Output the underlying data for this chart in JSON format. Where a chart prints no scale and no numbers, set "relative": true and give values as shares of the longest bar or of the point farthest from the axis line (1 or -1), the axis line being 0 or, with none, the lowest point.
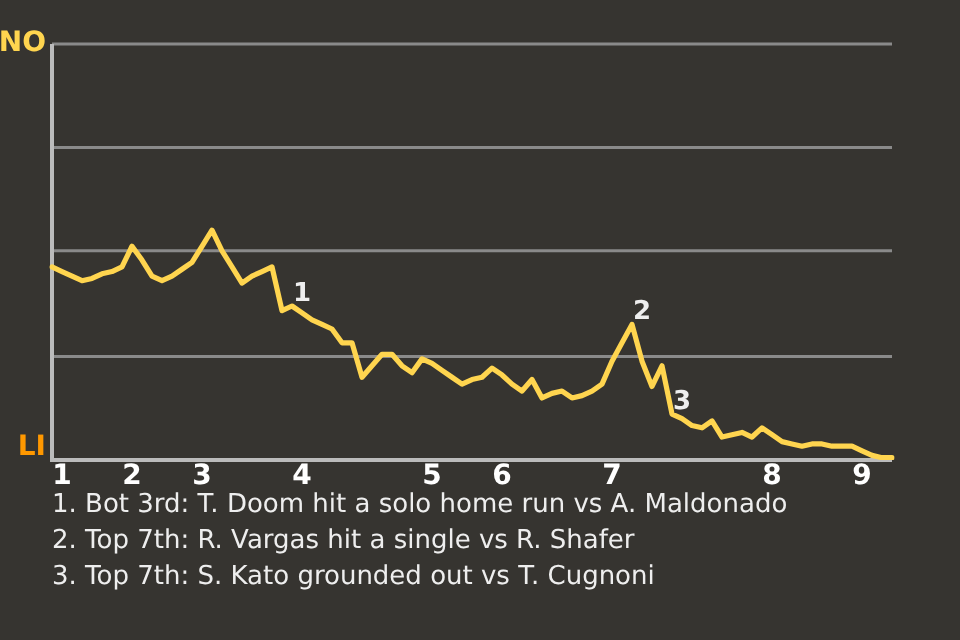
{
  "chart_data": {
    "type": "line",
    "relative": true,
    "categories": [
      null,
      "1",
      null,
      null,
      null,
      null,
      null,
      null,
      "2",
      null,
      null,
      null,
      null,
      null,
      null,
      "3",
      null,
      null,
      null,
      null,
      null,
      null,
      null,
      null,
      null,
      "4",
      null,
      null,
      null,
      null,
      null,
      null,
      null,
      null,
      null,
      null,
      null,
      null,
      "5",
      null,
      null,
      null,
      null,
      null,
      null,
      "6",
      null,
      null,
      null,
      null,
      null,
      null,
      null,
      null,
      null,
      null,
      "7",
      null,
      null,
      null,
      null,
      null,
      null,
      null,
      null,
      null,
      null,
      null,
      null,
      null,
      null,
      null,
      "8",
      null,
      null,
      null,
      null,
      null,
      null,
      null,
      null,
      "9",
      null,
      null,
      null
    ],
    "series": [
      {
        "color": "#ffd54f",
        "values": [
          0.84,
          0.82,
          0.8,
          0.78,
          0.79,
          0.81,
          0.82,
          0.84,
          0.93,
          0.87,
          0.8,
          0.78,
          0.8,
          0.83,
          0.86,
          0.93,
          1,
          0.91,
          0.84,
          0.77,
          0.8,
          0.82,
          0.84,
          0.65,
          0.67,
          0.64,
          0.61,
          0.59,
          0.57,
          0.51,
          0.51,
          0.36,
          0.41,
          0.46,
          0.46,
          0.41,
          0.38,
          0.44,
          0.42,
          0.39,
          0.36,
          0.33,
          0.35,
          0.36,
          0.4,
          0.37,
          0.33,
          0.3,
          0.35,
          0.27,
          0.29,
          0.3,
          0.27,
          0.28,
          0.3,
          0.33,
          0.43,
          0.51,
          0.59,
          0.43,
          0.32,
          0.41,
          0.2,
          0.18,
          0.15,
          0.14,
          0.17,
          0.1,
          0.11,
          0.12,
          0.1,
          0.14,
          0.11,
          0.08,
          0.07,
          0.06,
          0.07,
          0.07,
          0.06,
          0.06,
          0.06,
          0.04,
          0.02,
          0.01,
          0.01
        ],
        "name": null
      }
    ],
    "annotations": [
      "NO",
      "LI",
      "1. Bot 3rd: T. Doom hit a solo home run vs A. Maldonado",
      "2. Top 7th: R. Vargas hit a single vs R. Shafer",
      "3. Top 7th: S. Kato grounded out vs T. Cugnoni",
      {
        "text": "1",
        "y": 0.67
      },
      {
        "text": "2",
        "y": 0.59
      },
      {
        "text": "3",
        "y": 0.2
      }
    ],
    "ref_lines": [
      {
        "axis": "y",
        "value": 1.81,
        "color": "#8a8a8a"
      },
      {
        "axis": "y",
        "value": 1.36,
        "color": "#8a8a8a"
      },
      {
        "axis": "y",
        "value": 0.91,
        "color": "#8a8a8a"
      },
      {
        "axis": "y",
        "value": 0.45,
        "color": "#8a8a8a"
      }
    ],
    "marker": "none",
    "line_style": "solid"
  }
}
